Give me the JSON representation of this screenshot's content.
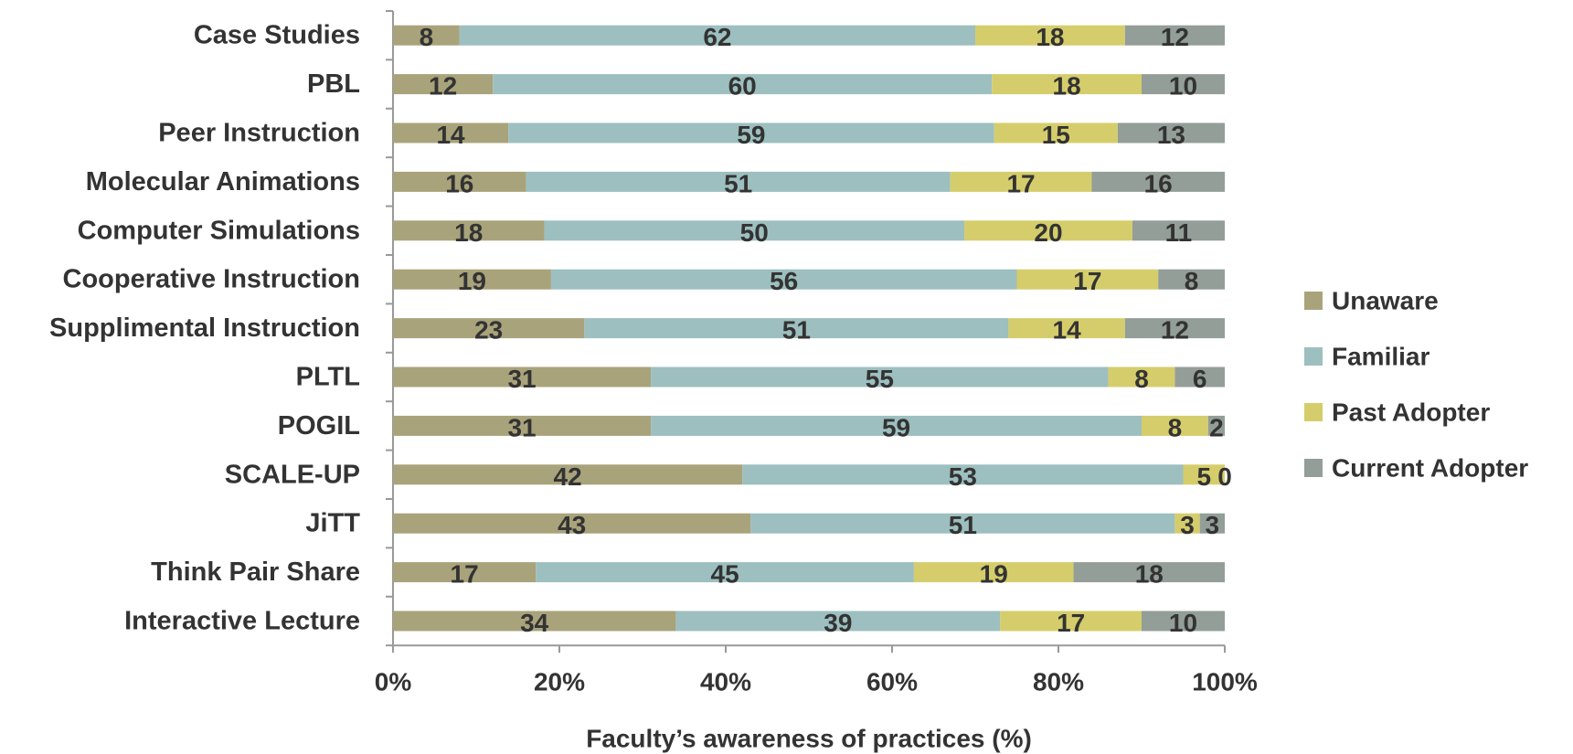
{
  "chart_data": {
    "type": "bar",
    "orientation": "horizontal",
    "stacked": "percent",
    "xlabel": "Faculty’s awareness of practices (%)",
    "categories": [
      "Case Studies",
      "PBL",
      "Peer Instruction",
      "Molecular Animations",
      "Computer Simulations",
      "Cooperative Instruction",
      "Supplimental Instruction",
      "PLTL",
      "POGIL",
      "SCALE-UP",
      "JiTT",
      "Think Pair Share",
      "Interactive Lecture"
    ],
    "series": [
      {
        "name": "Unaware",
        "color": "#a9a37b",
        "values": [
          8,
          12,
          14,
          16,
          18,
          19,
          23,
          31,
          31,
          42,
          43,
          17,
          34
        ]
      },
      {
        "name": "Familiar",
        "color": "#9dbfbf",
        "values": [
          62,
          60,
          59,
          51,
          50,
          56,
          51,
          55,
          59,
          53,
          51,
          45,
          39
        ]
      },
      {
        "name": "Past Adopter",
        "color": "#d5cd6b",
        "values": [
          18,
          18,
          15,
          17,
          20,
          17,
          14,
          8,
          8,
          5,
          3,
          19,
          17
        ]
      },
      {
        "name": "Current Adopter",
        "color": "#939e98",
        "values": [
          12,
          10,
          13,
          16,
          11,
          8,
          12,
          6,
          2,
          0,
          3,
          18,
          10
        ]
      }
    ],
    "xlim": [
      0,
      100
    ],
    "xticks": [
      {
        "value": 0,
        "label": "0%"
      },
      {
        "value": 20,
        "label": "20%"
      },
      {
        "value": 40,
        "label": "40%"
      },
      {
        "value": 60,
        "label": "60%"
      },
      {
        "value": 80,
        "label": "80%"
      },
      {
        "value": 100,
        "label": "100%"
      }
    ],
    "legend": "right"
  }
}
